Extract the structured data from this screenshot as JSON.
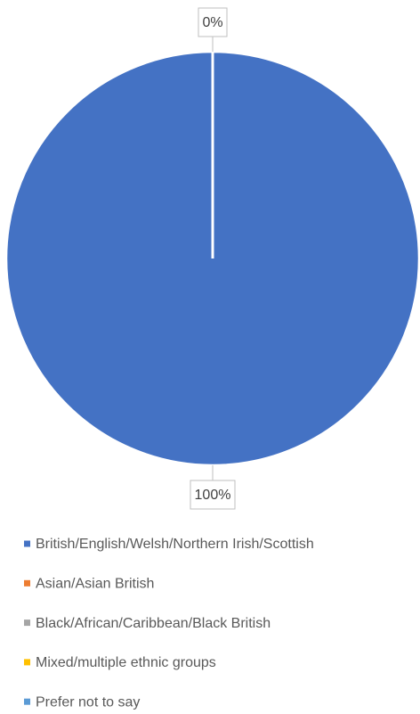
{
  "chart_data": {
    "type": "pie",
    "categories": [
      "British/English/Welsh/Northern Irish/Scottish",
      "Asian/Asian British",
      "Black/African/Caribbean/Black British",
      "Mixed/multiple ethnic groups",
      "Prefer not to say"
    ],
    "values": [
      100,
      0,
      0,
      0,
      0
    ],
    "value_labels": [
      "100%",
      "0%",
      null,
      null,
      null
    ],
    "colors": [
      "#4472c4",
      "#ed7d31",
      "#a5a5a5",
      "#ffc000",
      "#5b9bd5"
    ]
  }
}
